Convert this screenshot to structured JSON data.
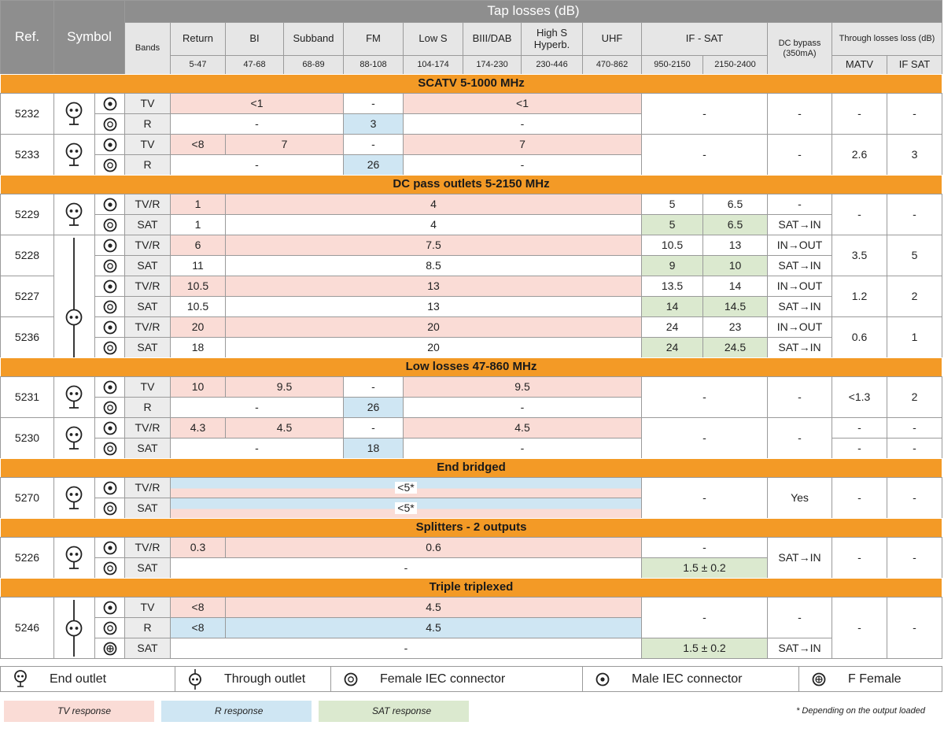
{
  "header": {
    "ref": "Ref.",
    "symbol": "Symbol",
    "tap_losses": "Tap losses (dB)",
    "bands": "Bands",
    "columns": [
      {
        "name": "Return",
        "range": "5-47"
      },
      {
        "name": "BI",
        "range": "47-68"
      },
      {
        "name": "Subband",
        "range": "68-89"
      },
      {
        "name": "FM",
        "range": "88-108"
      },
      {
        "name": "Low S",
        "range": "104-174"
      },
      {
        "name": "BIII/DAB",
        "range": "174-230"
      },
      {
        "name": "High S Hyperb.",
        "range": "230-446"
      },
      {
        "name": "UHF",
        "range": "470-862"
      }
    ],
    "if_sat": "IF - SAT",
    "if_sat_ranges": [
      "950-2150",
      "2150-2400"
    ],
    "dc_bypass": "DC bypass (350mA)",
    "through_losses": "Through losses loss (dB)",
    "through_cols": [
      "MATV",
      "IF SAT"
    ]
  },
  "groups": [
    {
      "title": "SCATV 5-1000 MHz",
      "products": [
        {
          "ref": "5232",
          "rows": [
            {
              "band": "TV",
              "cells": [
                "<1",
                "-",
                "<1",
                "-",
                "-",
                "-",
                "-"
              ]
            },
            {
              "band": "R",
              "cells": [
                "-",
                "3",
                "-"
              ]
            }
          ]
        },
        {
          "ref": "5233",
          "rows": [
            {
              "band": "TV",
              "cells": [
                "<8",
                "7",
                "-",
                "7",
                "-",
                "-",
                "2.6",
                "3"
              ]
            },
            {
              "band": "R",
              "cells": [
                "-",
                "26",
                "-"
              ]
            }
          ]
        }
      ]
    },
    {
      "title": "DC pass outlets 5-2150 MHz",
      "products": [
        {
          "ref": "5229",
          "rows": [
            {
              "band": "TV/R",
              "cells": [
                "1",
                "4",
                "5",
                "6.5",
                "-",
                "-",
                "-"
              ]
            },
            {
              "band": "SAT",
              "cells": [
                "1",
                "4",
                "5",
                "6.5",
                "SAT→IN"
              ]
            }
          ]
        },
        {
          "ref": "5228",
          "rows": [
            {
              "band": "TV/R",
              "cells": [
                "6",
                "7.5",
                "10.5",
                "13",
                "IN→OUT",
                "3.5",
                "5"
              ]
            },
            {
              "band": "SAT",
              "cells": [
                "11",
                "8.5",
                "9",
                "10",
                "SAT→IN"
              ]
            }
          ]
        },
        {
          "ref": "5227",
          "rows": [
            {
              "band": "TV/R",
              "cells": [
                "10.5",
                "13",
                "13.5",
                "14",
                "IN→OUT",
                "1.2",
                "2"
              ]
            },
            {
              "band": "SAT",
              "cells": [
                "10.5",
                "13",
                "14",
                "14.5",
                "SAT→IN"
              ]
            }
          ]
        },
        {
          "ref": "5236",
          "rows": [
            {
              "band": "TV/R",
              "cells": [
                "20",
                "20",
                "24",
                "23",
                "IN→OUT",
                "0.6",
                "1"
              ]
            },
            {
              "band": "SAT",
              "cells": [
                "18",
                "20",
                "24",
                "24.5",
                "SAT→IN"
              ]
            }
          ]
        }
      ]
    },
    {
      "title": "Low losses 47-860 MHz",
      "products": [
        {
          "ref": "5231",
          "rows": [
            {
              "band": "TV",
              "cells": [
                "10",
                "9.5",
                "-",
                "9.5",
                "-",
                "-",
                "<1.3",
                "2"
              ]
            },
            {
              "band": "R",
              "cells": [
                "-",
                "26",
                "-"
              ]
            }
          ]
        },
        {
          "ref": "5230",
          "rows": [
            {
              "band": "TV/R",
              "cells": [
                "4.3",
                "4.5",
                "-",
                "4.5",
                "-",
                "-",
                "-",
                "-"
              ]
            },
            {
              "band": "SAT",
              "cells": [
                "-",
                "18",
                "-",
                "-",
                "-"
              ]
            }
          ]
        }
      ]
    },
    {
      "title": "End bridged",
      "products": [
        {
          "ref": "5270",
          "rows": [
            {
              "band": "TV/R",
              "cells": [
                "<5*",
                "-",
                "Yes",
                "-",
                "-"
              ]
            },
            {
              "band": "SAT",
              "cells": [
                "<5*"
              ]
            }
          ]
        }
      ]
    },
    {
      "title": "Splitters - 2 outputs",
      "products": [
        {
          "ref": "5226",
          "rows": [
            {
              "band": "TV/R",
              "cells": [
                "0.3",
                "0.6",
                "-",
                "SAT→IN",
                "-",
                "-"
              ]
            },
            {
              "band": "SAT",
              "cells": [
                "-",
                "1.5 ± 0.2"
              ]
            }
          ]
        }
      ]
    },
    {
      "title": "Triple triplexed",
      "products": [
        {
          "ref": "5246",
          "rows": [
            {
              "band": "TV",
              "cells": [
                "<8",
                "4.5",
                "-",
                "-",
                "-",
                "-"
              ]
            },
            {
              "band": "R",
              "cells": [
                "<8",
                "4.5"
              ]
            },
            {
              "band": "SAT",
              "cells": [
                "-",
                "1.5 ± 0.2",
                "SAT→IN"
              ]
            }
          ]
        }
      ]
    }
  ],
  "symbol_legend": [
    "End outlet",
    "Through outlet",
    "Female IEC connector",
    "Male IEC connector",
    "F Female"
  ],
  "color_legend": [
    "TV response",
    "R response",
    "SAT response"
  ],
  "footnote": "* Depending on the output loaded"
}
